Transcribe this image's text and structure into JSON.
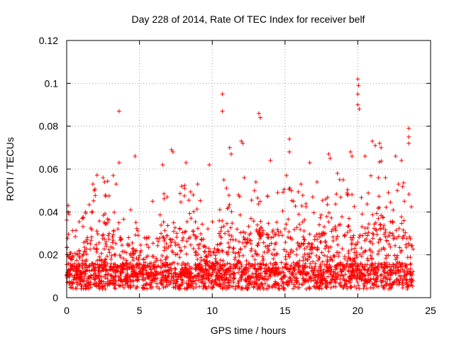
{
  "chart_data": {
    "type": "scatter",
    "title": "Day 228 of 2014, Rate Of TEC Index for receiver belf",
    "xlabel": "GPS time / hours",
    "ylabel": "ROTI / TECUs",
    "xlim": [
      0,
      25
    ],
    "ylim": [
      0,
      0.12
    ],
    "x_ticks": [
      "0",
      "5",
      "10",
      "15",
      "20",
      "25"
    ],
    "y_ticks": [
      "0",
      "0.02",
      "0.04",
      "0.06",
      "0.08",
      "0.1",
      "0.12"
    ],
    "grid": true,
    "marker": "+",
    "series": [
      {
        "name": "ROTI",
        "color": "#ff0000",
        "note": "Dense cloud of points from 0 to ~23.8 h; baseline ~0.005-0.02 TECU, frequent spikes to 0.03-0.07 TECU",
        "points": [
          [
            3.6,
            0.087
          ],
          [
            10.7,
            0.095
          ],
          [
            10.7,
            0.087
          ],
          [
            13.2,
            0.086
          ],
          [
            13.3,
            0.084
          ],
          [
            20.0,
            0.102
          ],
          [
            20.05,
            0.099
          ],
          [
            20.0,
            0.095
          ],
          [
            20.0,
            0.09
          ],
          [
            20.1,
            0.088
          ],
          [
            23.5,
            0.079
          ],
          [
            23.5,
            0.075
          ],
          [
            23.5,
            0.072
          ],
          [
            12.0,
            0.073
          ],
          [
            12.1,
            0.072
          ],
          [
            11.2,
            0.07
          ],
          [
            11.3,
            0.067
          ],
          [
            15.3,
            0.074
          ],
          [
            15.3,
            0.068
          ],
          [
            21.0,
            0.073
          ],
          [
            21.2,
            0.071
          ],
          [
            21.5,
            0.072
          ],
          [
            21.6,
            0.07
          ],
          [
            7.2,
            0.069
          ],
          [
            7.3,
            0.068
          ],
          [
            4.7,
            0.066
          ],
          [
            18.0,
            0.067
          ],
          [
            18.1,
            0.065
          ],
          [
            19.5,
            0.068
          ],
          [
            19.6,
            0.066
          ],
          [
            3.6,
            0.063
          ],
          [
            6.6,
            0.062
          ],
          [
            8.2,
            0.063
          ],
          [
            9.8,
            0.062
          ],
          [
            14.0,
            0.064
          ],
          [
            16.7,
            0.063
          ],
          [
            20.5,
            0.066
          ],
          [
            22.6,
            0.066
          ],
          [
            23.0,
            0.064
          ],
          [
            0.1,
            0.043
          ],
          [
            0.1,
            0.04
          ],
          [
            0.15,
            0.039
          ],
          [
            2.5,
            0.056
          ],
          [
            2.6,
            0.054
          ],
          [
            3.2,
            0.057
          ],
          [
            3.4,
            0.053
          ],
          [
            1.8,
            0.053
          ],
          [
            1.9,
            0.05
          ],
          [
            7.9,
            0.052
          ],
          [
            8.1,
            0.051
          ],
          [
            9.0,
            0.053
          ],
          [
            10.8,
            0.055
          ],
          [
            12.2,
            0.056
          ],
          [
            13.0,
            0.054
          ],
          [
            15.1,
            0.057
          ],
          [
            16.1,
            0.053
          ],
          [
            17.2,
            0.054
          ],
          [
            18.6,
            0.058
          ],
          [
            19.0,
            0.055
          ],
          [
            21.9,
            0.056
          ],
          [
            22.8,
            0.053
          ],
          [
            6.9,
            0.047
          ],
          [
            5.9,
            0.045
          ],
          [
            4.4,
            0.041
          ],
          [
            1.3,
            0.04
          ],
          [
            11.8,
            0.048
          ],
          [
            14.5,
            0.049
          ],
          [
            16.9,
            0.047
          ],
          [
            17.8,
            0.046
          ],
          [
            22.1,
            0.049
          ],
          [
            23.2,
            0.045
          ]
        ]
      }
    ]
  }
}
